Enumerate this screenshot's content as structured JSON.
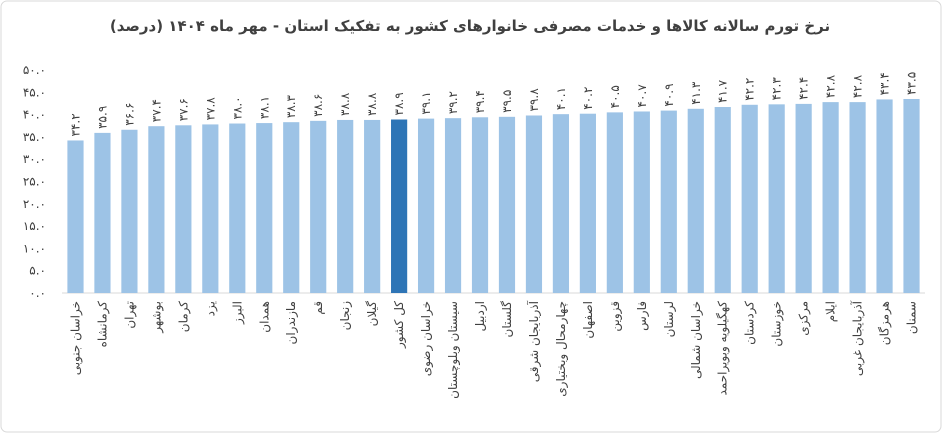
{
  "chart_data": {
    "type": "bar",
    "title": "نرخ تورم سالانه کالاها و خدمات مصرفی خانوارهای کشور به تفکیک استان - مهر ماه ۱۴۰۴ (درصد)",
    "categories": [
      "خراسان جنوبی",
      "کرمانشاه",
      "تهران",
      "بوشهر",
      "کرمان",
      "یزد",
      "البرز",
      "همدان",
      "مازندران",
      "قم",
      "زنجان",
      "گیلان",
      "کل کشور",
      "خراسان رضوی",
      "سیستان وبلوچستان",
      "اردبیل",
      "گلستان",
      "آذربایجان شرقی",
      "چهارمحال وبختیاری",
      "اصفهان",
      "قزوین",
      "فارس",
      "لرستان",
      "خراسان شمالی",
      "کهگیلویه وبویراحمد",
      "کردستان",
      "خوزستان",
      "مرکزی",
      "ایلام",
      "آذربایجان غربی",
      "هرمزگان",
      "سمنان"
    ],
    "values": [
      34.2,
      35.9,
      36.6,
      37.4,
      37.6,
      37.8,
      38.0,
      38.1,
      38.3,
      38.6,
      38.8,
      38.8,
      38.9,
      39.1,
      39.2,
      39.4,
      39.5,
      39.8,
      40.1,
      40.2,
      40.5,
      40.7,
      40.9,
      41.3,
      41.7,
      42.2,
      42.3,
      42.4,
      42.8,
      42.8,
      43.4,
      43.5
    ],
    "value_labels": [
      "۳۴.۲",
      "۳۵.۹",
      "۳۶.۶",
      "۳۷.۴",
      "۳۷.۶",
      "۳۷.۸",
      "۳۸.۰",
      "۳۸.۱",
      "۳۸.۳",
      "۳۸.۶",
      "۳۸.۸",
      "۳۸.۸",
      "۳۸.۹",
      "۳۹.۱",
      "۳۹.۲",
      "۳۹.۴",
      "۳۹.۵",
      "۳۹.۸",
      "۴۰.۱",
      "۴۰.۲",
      "۴۰.۵",
      "۴۰.۷",
      "۴۰.۹",
      "۴۱.۳",
      "۴۱.۷",
      "۴۲.۲",
      "۴۲.۳",
      "۴۲.۴",
      "۴۲.۸",
      "۴۲.۸",
      "۴۳.۴",
      "۴۳.۵"
    ],
    "colors": [
      "#9dc3e6",
      "#9dc3e6",
      "#9dc3e6",
      "#9dc3e6",
      "#9dc3e6",
      "#9dc3e6",
      "#9dc3e6",
      "#9dc3e6",
      "#9dc3e6",
      "#9dc3e6",
      "#9dc3e6",
      "#9dc3e6",
      "#2e75b6",
      "#9dc3e6",
      "#9dc3e6",
      "#9dc3e6",
      "#9dc3e6",
      "#9dc3e6",
      "#9dc3e6",
      "#9dc3e6",
      "#9dc3e6",
      "#9dc3e6",
      "#9dc3e6",
      "#9dc3e6",
      "#9dc3e6",
      "#9dc3e6",
      "#9dc3e6",
      "#9dc3e6",
      "#9dc3e6",
      "#9dc3e6",
      "#9dc3e6",
      "#9dc3e6"
    ],
    "ylim": [
      0,
      50
    ],
    "yticks": [
      {
        "value": 0,
        "label": "۰.۰"
      },
      {
        "value": 5,
        "label": "۵.۰"
      },
      {
        "value": 10,
        "label": "۱۰.۰"
      },
      {
        "value": 15,
        "label": "۱۵.۰"
      },
      {
        "value": 20,
        "label": "۲۰.۰"
      },
      {
        "value": 25,
        "label": "۲۵.۰"
      },
      {
        "value": 30,
        "label": "۳۰.۰"
      },
      {
        "value": 35,
        "label": "۳۵.۰"
      },
      {
        "value": 40,
        "label": "۴۰.۰"
      },
      {
        "value": 45,
        "label": "۴۵.۰"
      },
      {
        "value": 50,
        "label": "۵۰.۰"
      }
    ],
    "grid": false
  }
}
